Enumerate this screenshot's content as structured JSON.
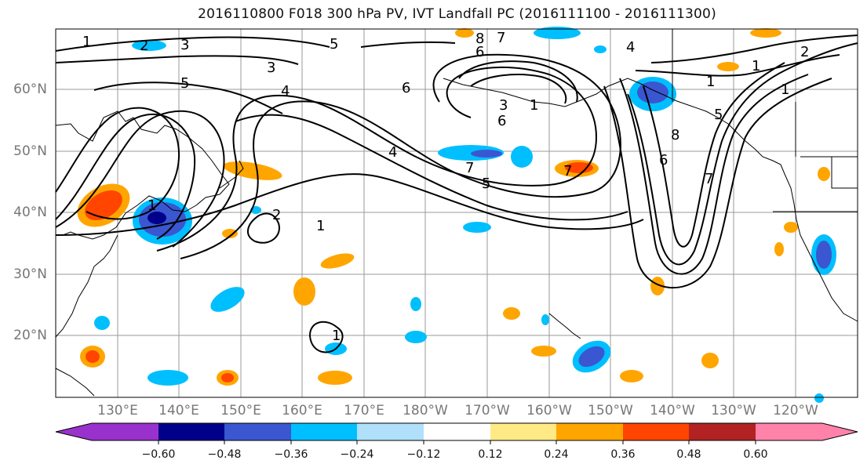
{
  "title": "2016110800 F018 300 hPa PV, IVT Landfall PC (2016111100 - 2016111300)",
  "lat_labels": [
    "60°N",
    "50°N",
    "40°N",
    "30°N",
    "20°N"
  ],
  "lon_labels": [
    "130°E",
    "140°E",
    "150°E",
    "160°E",
    "170°E",
    "180°W",
    "170°W",
    "160°W",
    "150°W",
    "140°W",
    "130°W",
    "120°W"
  ],
  "colorbar": {
    "ticks": [
      "−0.60",
      "−0.48",
      "−0.36",
      "−0.24",
      "−0.12",
      "0.12",
      "0.24",
      "0.36",
      "0.48",
      "0.60"
    ],
    "colors": [
      "#9932cc",
      "#00008b",
      "#3a56d0",
      "#00bfff",
      "#b0e0fa",
      "#ffffff",
      "#ffea86",
      "#ffa500",
      "#ff4500",
      "#b22222",
      "#ff82ab"
    ]
  },
  "contour_labels": [
    "1",
    "2",
    "3",
    "5",
    "3",
    "5",
    "4",
    "6",
    "8",
    "7",
    "1",
    "3",
    "6",
    "7",
    "4",
    "7",
    "5",
    "1",
    "2",
    "1",
    "4",
    "1",
    "5",
    "8",
    "6",
    "7",
    "1",
    "2",
    "1",
    "1",
    "6"
  ]
}
